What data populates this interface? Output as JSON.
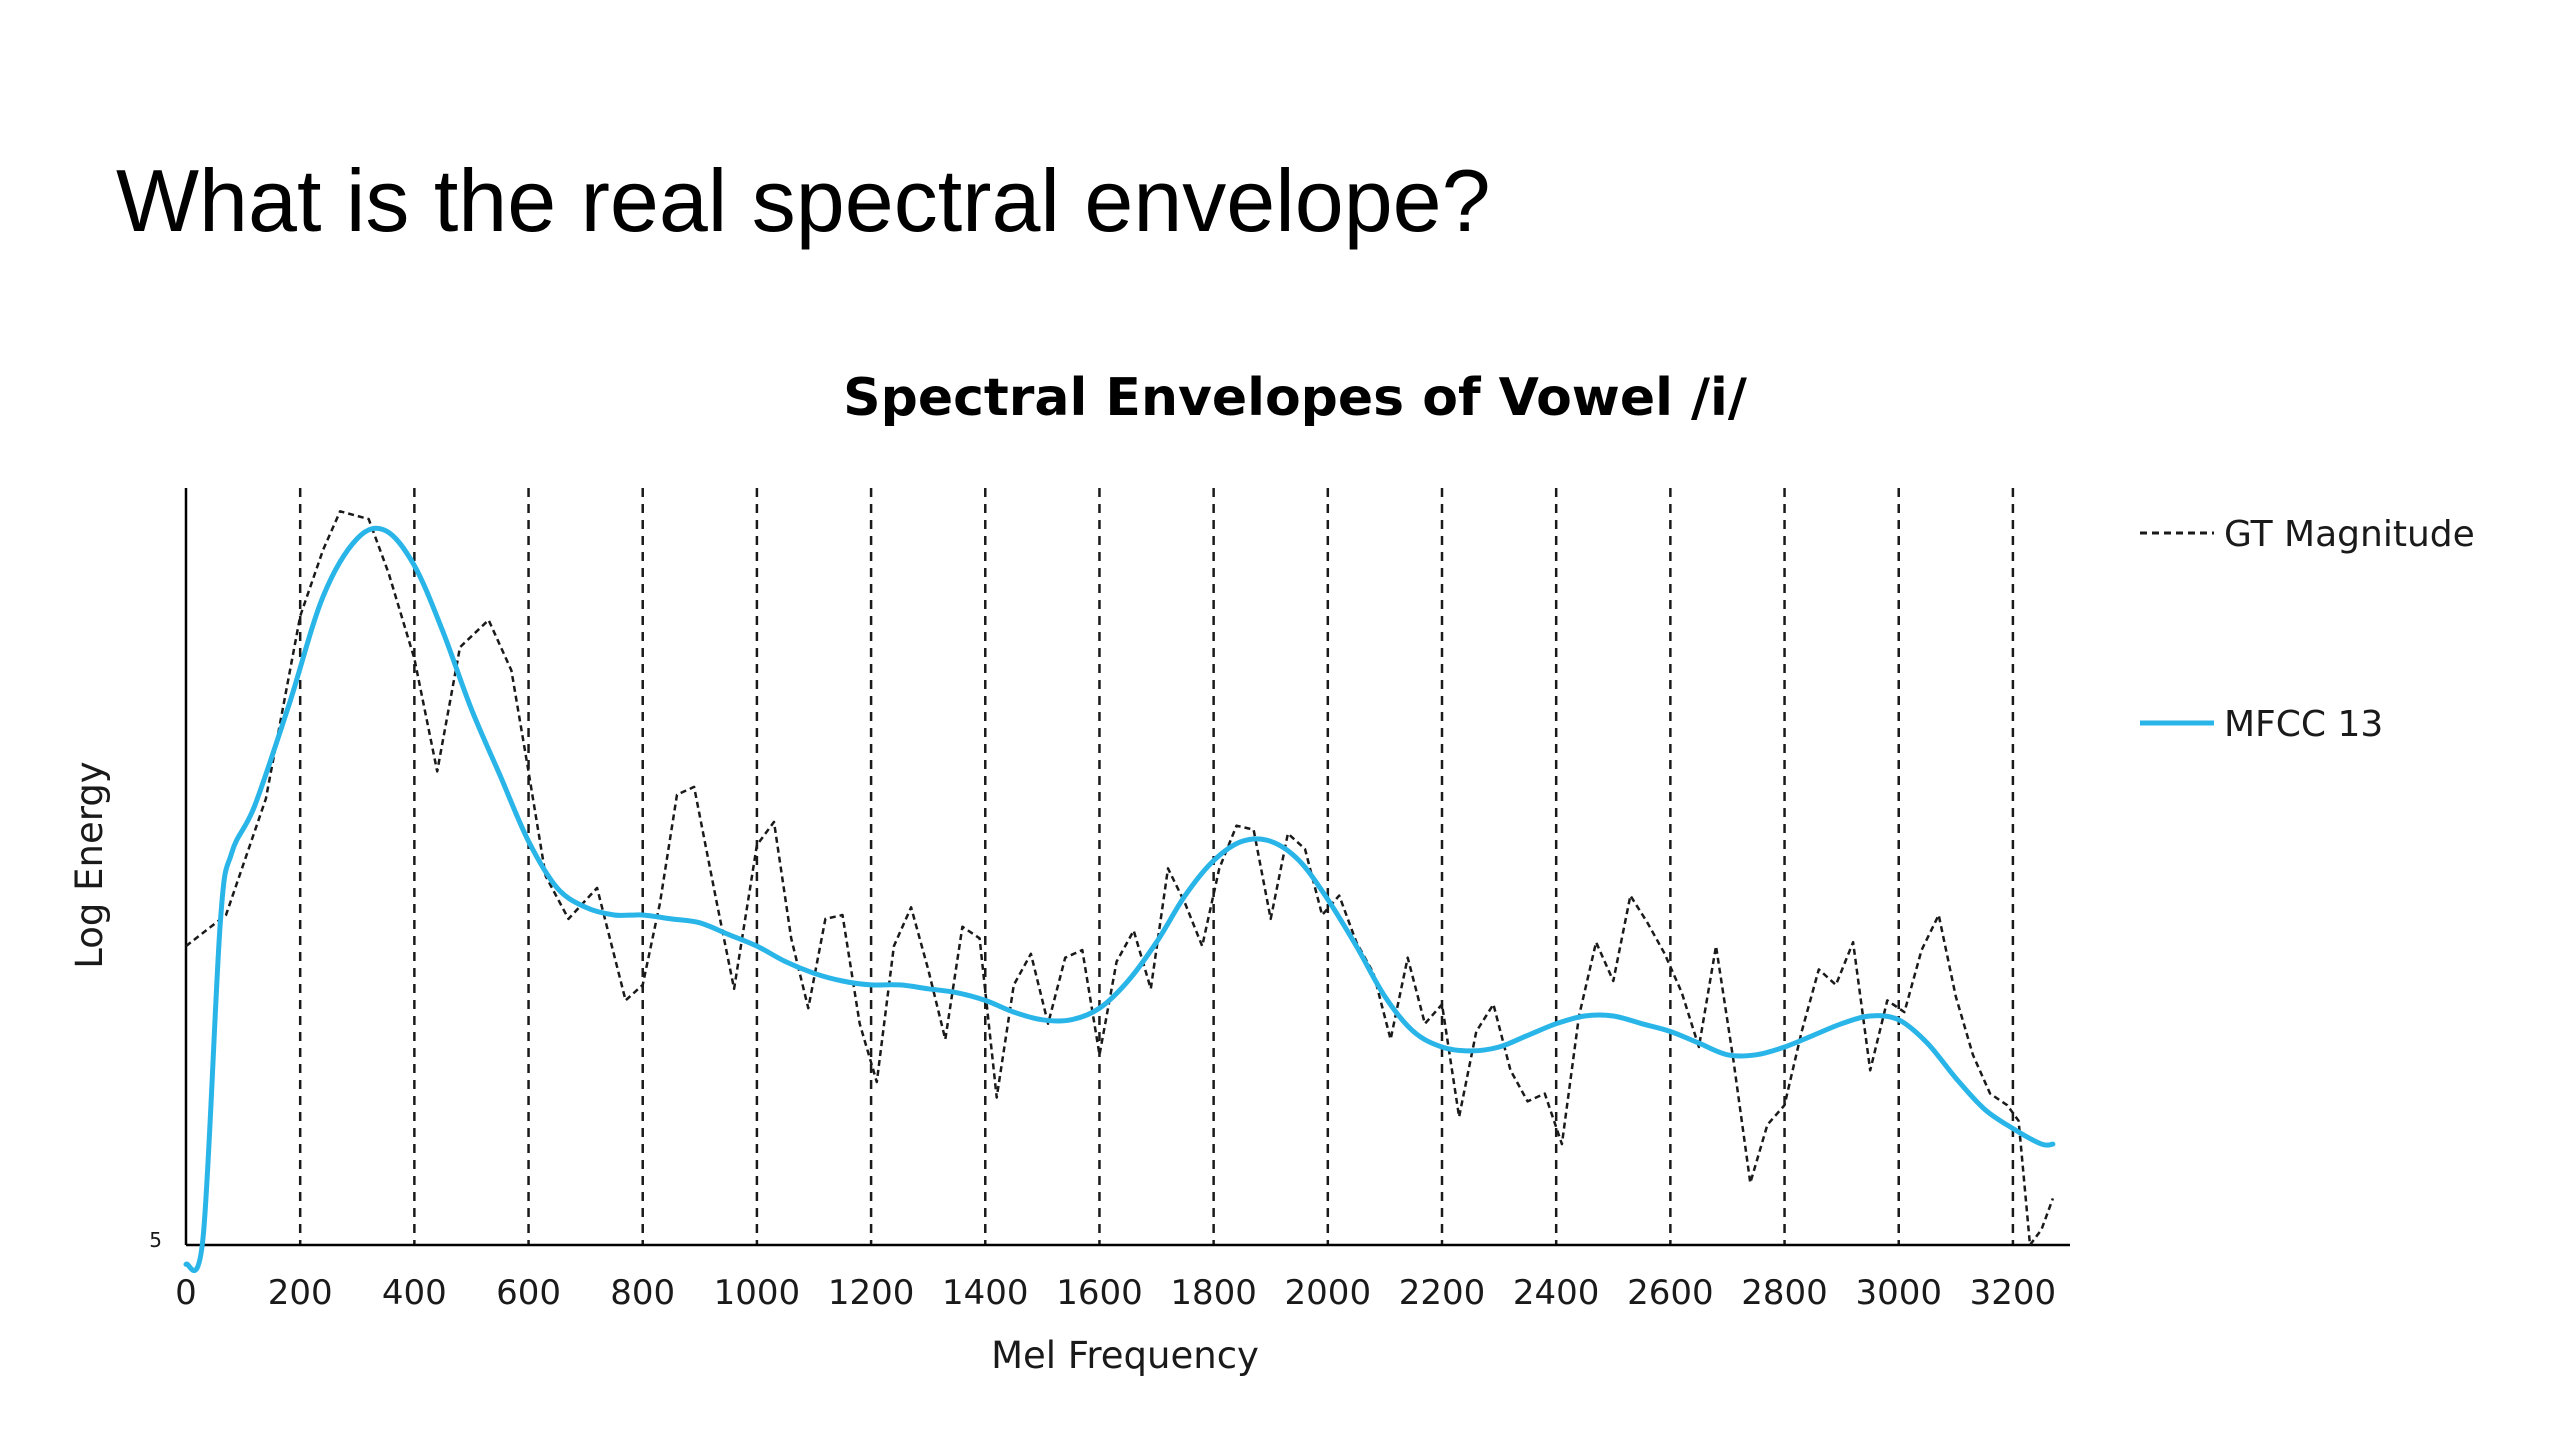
{
  "slide": {
    "title": "What is the real spectral envelope?"
  },
  "colors": {
    "gt": "#1a1a1a",
    "mfcc": "#29b5e8",
    "axis": "#000000",
    "grid": "#1a1a1a"
  },
  "chart_data": {
    "type": "line",
    "title": "Spectral Envelopes of Vowel /i/",
    "xlabel": "Mel Frequency",
    "ylabel": "Log Energy",
    "xlim": [
      0,
      3300
    ],
    "ylim": [
      5,
      24.5
    ],
    "x_ticks": [
      "0",
      "200",
      "400",
      "600",
      "800",
      "1000",
      "1200",
      "1400",
      "1600",
      "1800",
      "2000",
      "2200",
      "2400",
      "2600",
      "2800",
      "3000",
      "3200"
    ],
    "y_tick_label": "5",
    "grid_vertical_dashed": [
      200,
      400,
      600,
      800,
      1000,
      1200,
      1400,
      1600,
      1800,
      2000,
      2200,
      2400,
      2600,
      2800,
      3000,
      3200
    ],
    "legend_position": "right",
    "series": [
      {
        "name": "GT Magnitude",
        "style": "dashed",
        "x": [
          0,
          70,
          140,
          200,
          240,
          270,
          320,
          355,
          400,
          440,
          480,
          530,
          570,
          600,
          630,
          670,
          720,
          770,
          800,
          830,
          860,
          890,
          930,
          960,
          1000,
          1030,
          1060,
          1090,
          1120,
          1150,
          1180,
          1210,
          1240,
          1270,
          1300,
          1330,
          1360,
          1390,
          1420,
          1450,
          1480,
          1510,
          1540,
          1570,
          1600,
          1630,
          1660,
          1690,
          1720,
          1750,
          1780,
          1810,
          1840,
          1870,
          1900,
          1930,
          1960,
          1990,
          2020,
          2050,
          2080,
          2110,
          2140,
          2170,
          2200,
          2230,
          2260,
          2290,
          2320,
          2350,
          2380,
          2410,
          2440,
          2470,
          2500,
          2530,
          2560,
          2590,
          2620,
          2650,
          2680,
          2710,
          2740,
          2770,
          2800,
          2830,
          2860,
          2890,
          2920,
          2950,
          2980,
          3010,
          3040,
          3070,
          3100,
          3130,
          3160,
          3190,
          3210,
          3230,
          3250,
          3270
        ],
        "y": [
          12.7,
          13.5,
          16.5,
          21.2,
          22.9,
          23.9,
          23.7,
          22.3,
          20.1,
          17.2,
          20.4,
          21.1,
          19.8,
          17.2,
          14.5,
          13.4,
          14.2,
          11.3,
          11.7,
          13.8,
          16.6,
          16.8,
          13.8,
          11.6,
          15.3,
          15.9,
          12.9,
          11.1,
          13.4,
          13.5,
          10.7,
          9.2,
          12.7,
          13.7,
          12.1,
          10.3,
          13.2,
          12.9,
          8.8,
          11.7,
          12.5,
          10.7,
          12.4,
          12.6,
          9.9,
          12.3,
          13.1,
          11.6,
          14.7,
          13.8,
          12.7,
          14.7,
          15.8,
          15.7,
          13.4,
          15.6,
          15.2,
          13.5,
          14.0,
          12.8,
          12.0,
          10.3,
          12.4,
          10.7,
          11.2,
          8.3,
          10.5,
          11.2,
          9.5,
          8.7,
          8.9,
          7.6,
          10.9,
          12.8,
          11.8,
          14.0,
          13.3,
          12.5,
          11.5,
          10.1,
          12.7,
          9.8,
          6.6,
          8.1,
          8.6,
          10.5,
          12.1,
          11.7,
          12.8,
          9.5,
          11.3,
          11.0,
          12.6,
          13.5,
          11.4,
          9.9,
          8.9,
          8.6,
          8.2,
          5.0,
          5.4,
          6.2
        ]
      },
      {
        "name": "MFCC 13",
        "style": "solid",
        "x": [
          0,
          30,
          60,
          80,
          120,
          180,
          240,
          300,
          350,
          400,
          450,
          500,
          550,
          600,
          650,
          700,
          750,
          800,
          850,
          900,
          950,
          1000,
          1050,
          1100,
          1150,
          1200,
          1250,
          1300,
          1350,
          1400,
          1450,
          1500,
          1550,
          1600,
          1650,
          1700,
          1750,
          1800,
          1850,
          1900,
          1950,
          2000,
          2050,
          2100,
          2150,
          2200,
          2250,
          2300,
          2350,
          2400,
          2450,
          2500,
          2550,
          2600,
          2650,
          2700,
          2750,
          2800,
          2850,
          2900,
          2950,
          3000,
          3050,
          3100,
          3150,
          3200,
          3250,
          3270
        ],
        "y": [
          4.5,
          5.2,
          13.3,
          15.1,
          16.3,
          18.9,
          21.7,
          23.2,
          23.4,
          22.5,
          20.8,
          18.8,
          17.1,
          15.4,
          14.2,
          13.7,
          13.5,
          13.5,
          13.4,
          13.3,
          13.0,
          12.7,
          12.3,
          12.0,
          11.8,
          11.7,
          11.7,
          11.6,
          11.5,
          11.3,
          11.0,
          10.8,
          10.8,
          11.1,
          11.8,
          12.8,
          14.0,
          14.9,
          15.4,
          15.4,
          14.9,
          13.9,
          12.7,
          11.4,
          10.5,
          10.1,
          10.0,
          10.1,
          10.4,
          10.7,
          10.9,
          10.9,
          10.7,
          10.5,
          10.2,
          9.9,
          9.9,
          10.1,
          10.4,
          10.7,
          10.9,
          10.8,
          10.2,
          9.3,
          8.5,
          8.0,
          7.6,
          7.6
        ]
      }
    ]
  }
}
